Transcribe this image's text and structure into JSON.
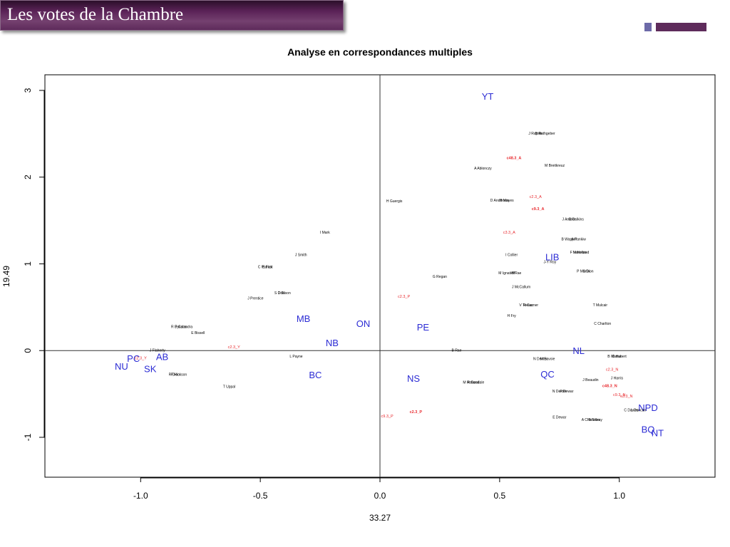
{
  "header": {
    "title": "Les votes de la Chambre"
  },
  "colors": {
    "banner": "#5e2b5b",
    "deco_square": "#6d6aa8",
    "province_labels": "#2b2bd4",
    "category_labels": "#e8282d",
    "member_labels": "#000000"
  },
  "chart_data": {
    "type": "scatter",
    "title": "Analyse en correspondances multiples",
    "xlabel": "33.27",
    "ylabel": "19.49",
    "xlim": [
      -1.4,
      1.4
    ],
    "ylim": [
      -1.46,
      3.18
    ],
    "x_ticks": [
      {
        "value": -1.0,
        "label": "-1.0"
      },
      {
        "value": -0.5,
        "label": "-0.5"
      },
      {
        "value": 0.0,
        "label": "0.0"
      },
      {
        "value": 0.5,
        "label": "0.5"
      },
      {
        "value": 1.0,
        "label": "1.0"
      }
    ],
    "y_ticks": [
      {
        "value": -1,
        "label": "-1"
      },
      {
        "value": 0,
        "label": "0"
      },
      {
        "value": 1,
        "label": "1"
      },
      {
        "value": 2,
        "label": "2"
      },
      {
        "value": 3,
        "label": "3"
      }
    ],
    "reference_lines": {
      "x": 0,
      "y": 0
    },
    "series": [
      {
        "name": "provinces_parties",
        "style": "large",
        "points": [
          {
            "x": 0.45,
            "y": 2.92,
            "label": "YT"
          },
          {
            "x": 0.72,
            "y": 1.07,
            "label": "LIB"
          },
          {
            "x": -0.32,
            "y": 0.36,
            "label": "MB"
          },
          {
            "x": -0.07,
            "y": 0.3,
            "label": "ON"
          },
          {
            "x": 0.18,
            "y": 0.26,
            "label": "PE"
          },
          {
            "x": -0.2,
            "y": 0.08,
            "label": "NB"
          },
          {
            "x": 0.83,
            "y": -0.01,
            "label": "NL"
          },
          {
            "x": -1.03,
            "y": -0.1,
            "label": "PC"
          },
          {
            "x": -0.91,
            "y": -0.08,
            "label": "AB"
          },
          {
            "x": -1.08,
            "y": -0.19,
            "label": "NU"
          },
          {
            "x": -0.96,
            "y": -0.22,
            "label": "SK"
          },
          {
            "x": -0.27,
            "y": -0.29,
            "label": "BC"
          },
          {
            "x": 0.14,
            "y": -0.33,
            "label": "NS"
          },
          {
            "x": 0.7,
            "y": -0.28,
            "label": "QC"
          },
          {
            "x": 1.12,
            "y": -0.67,
            "label": "NPD"
          },
          {
            "x": 1.12,
            "y": -0.92,
            "label": "BQ"
          },
          {
            "x": 1.16,
            "y": -0.96,
            "label": "NT"
          }
        ]
      },
      {
        "name": "vote_categories",
        "style": "small",
        "points": [
          {
            "x": 0.56,
            "y": 2.22,
            "label": "c48.3_A",
            "bold": true
          },
          {
            "x": 0.65,
            "y": 1.77,
            "label": "c2.3_A"
          },
          {
            "x": 0.66,
            "y": 1.63,
            "label": "c9.3_A",
            "bold": true
          },
          {
            "x": 0.54,
            "y": 1.36,
            "label": "c3.3_A"
          },
          {
            "x": 0.1,
            "y": 0.62,
            "label": "c2.3_P"
          },
          {
            "x": -0.61,
            "y": 0.04,
            "label": "c2.3_Y"
          },
          {
            "x": -1.0,
            "y": -0.09,
            "label": "c2.3_Y"
          },
          {
            "x": 0.97,
            "y": -0.22,
            "label": "c2.3_N"
          },
          {
            "x": 0.96,
            "y": -0.41,
            "label": "c48.3_N",
            "bold": true
          },
          {
            "x": 1.0,
            "y": -0.51,
            "label": "c9.3_N"
          },
          {
            "x": 1.03,
            "y": -0.53,
            "label": "c3.3_N"
          },
          {
            "x": 0.15,
            "y": -0.71,
            "label": "c2.3_P",
            "bold": true
          },
          {
            "x": 0.03,
            "y": -0.76,
            "label": "c9.3_P"
          }
        ]
      },
      {
        "name": "members",
        "style": "tiny",
        "points": [
          {
            "x": 0.65,
            "y": 2.5,
            "label": "J Rajotte"
          },
          {
            "x": 0.69,
            "y": 2.5,
            "label": "B Rathgeber"
          },
          {
            "x": 0.43,
            "y": 2.1,
            "label": "A Ablonczy"
          },
          {
            "x": 0.73,
            "y": 2.13,
            "label": "M Breitkreuz"
          },
          {
            "x": 0.06,
            "y": 1.72,
            "label": "H Guergis"
          },
          {
            "x": 0.5,
            "y": 1.73,
            "label": "D Anderson"
          },
          {
            "x": 0.53,
            "y": 1.73,
            "label": "B Mayes"
          },
          {
            "x": 0.79,
            "y": 1.51,
            "label": "J Ambler"
          },
          {
            "x": 0.82,
            "y": 1.51,
            "label": "B Calkins"
          },
          {
            "x": -0.23,
            "y": 1.36,
            "label": "I Mark"
          },
          {
            "x": 0.79,
            "y": 1.28,
            "label": "B Wappel"
          },
          {
            "x": 0.83,
            "y": 1.28,
            "label": "A Pankiw"
          },
          {
            "x": 0.83,
            "y": 1.13,
            "label": "F Valeriote"
          },
          {
            "x": 0.84,
            "y": 1.13,
            "label": "M Holland"
          },
          {
            "x": 0.55,
            "y": 1.1,
            "label": "I Collier"
          },
          {
            "x": 0.71,
            "y": 1.02,
            "label": "J-Y Roy"
          },
          {
            "x": -0.33,
            "y": 1.1,
            "label": "J Smith"
          },
          {
            "x": -0.48,
            "y": 0.96,
            "label": "C Patrick"
          },
          {
            "x": -0.47,
            "y": 0.96,
            "label": "E Fast"
          },
          {
            "x": 0.53,
            "y": 0.89,
            "label": "M Ignatieff"
          },
          {
            "x": 0.57,
            "y": 0.89,
            "label": "B Rae"
          },
          {
            "x": 0.85,
            "y": 0.91,
            "label": "P Martin"
          },
          {
            "x": 0.87,
            "y": 0.91,
            "label": "S Dion"
          },
          {
            "x": 0.25,
            "y": 0.85,
            "label": "G Regan"
          },
          {
            "x": 0.59,
            "y": 0.73,
            "label": "J McCallum"
          },
          {
            "x": -0.42,
            "y": 0.66,
            "label": "S Oda"
          },
          {
            "x": -0.4,
            "y": 0.66,
            "label": "D Tilson"
          },
          {
            "x": -0.52,
            "y": 0.6,
            "label": "J Prentice"
          },
          {
            "x": 0.61,
            "y": 0.52,
            "label": "V Toews"
          },
          {
            "x": 0.63,
            "y": 0.52,
            "label": "R Cuzner"
          },
          {
            "x": 0.92,
            "y": 0.52,
            "label": "T Mulcair"
          },
          {
            "x": 0.55,
            "y": 0.4,
            "label": "H Fry"
          },
          {
            "x": 0.93,
            "y": 0.31,
            "label": "C Charlton"
          },
          {
            "x": -0.84,
            "y": 0.27,
            "label": "R Dykstra"
          },
          {
            "x": -0.82,
            "y": 0.27,
            "label": "P Calandra"
          },
          {
            "x": -0.76,
            "y": 0.2,
            "label": "E Bissell"
          },
          {
            "x": -0.93,
            "y": 0.0,
            "label": "J Flaherty"
          },
          {
            "x": -0.35,
            "y": -0.07,
            "label": "L Payne"
          },
          {
            "x": 0.32,
            "y": 0.0,
            "label": "B Rae"
          },
          {
            "x": 0.67,
            "y": -0.1,
            "label": "N Dexter"
          },
          {
            "x": 0.7,
            "y": -0.1,
            "label": "M Savoie"
          },
          {
            "x": 0.98,
            "y": -0.07,
            "label": "B Masse"
          },
          {
            "x": 1.0,
            "y": -0.07,
            "label": "D Hubert"
          },
          {
            "x": -0.86,
            "y": -0.28,
            "label": "R Dion"
          },
          {
            "x": -0.84,
            "y": -0.28,
            "label": "P Hickson"
          },
          {
            "x": 0.88,
            "y": -0.34,
            "label": "J Beaudin"
          },
          {
            "x": 0.99,
            "y": -0.32,
            "label": "J Harris"
          },
          {
            "x": -0.63,
            "y": -0.42,
            "label": "T Uppal"
          },
          {
            "x": 0.38,
            "y": -0.37,
            "label": "M Holland"
          },
          {
            "x": 0.4,
            "y": -0.37,
            "label": "R Goodale"
          },
          {
            "x": 0.75,
            "y": -0.47,
            "label": "N Dexter"
          },
          {
            "x": 0.78,
            "y": -0.47,
            "label": "P Dewar"
          },
          {
            "x": 0.75,
            "y": -0.77,
            "label": "E Dewar"
          },
          {
            "x": 0.88,
            "y": -0.8,
            "label": "A Chisholm"
          },
          {
            "x": 0.9,
            "y": -0.8,
            "label": "B Siksay"
          },
          {
            "x": 1.05,
            "y": -0.69,
            "label": "C Davies"
          },
          {
            "x": 1.08,
            "y": -0.69,
            "label": "L Duncan"
          }
        ]
      }
    ]
  }
}
